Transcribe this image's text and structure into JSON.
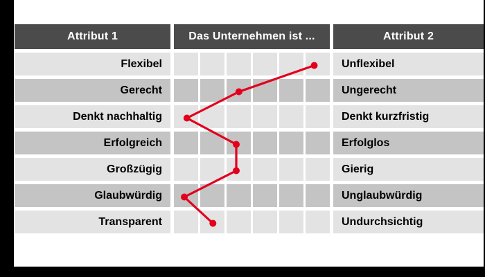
{
  "headers": {
    "left": "Attribut 1",
    "middle": "Das Unternehmen ist ...",
    "right": "Attribut 2"
  },
  "rows": [
    {
      "left": "Flexibel",
      "right": "Unflexibel",
      "value": 5.9
    },
    {
      "left": "Gerecht",
      "right": "Ungerecht",
      "value": 3.0
    },
    {
      "left": "Denkt nachhaltig",
      "right": "Denkt kurzfristig",
      "value": 1.0
    },
    {
      "left": "Erfolgreich",
      "right": "Erfolglos",
      "value": 2.9
    },
    {
      "left": "Großzügig",
      "right": "Gierig",
      "value": 2.9
    },
    {
      "left": "Glaubwürdig",
      "right": "Unglaubwürdig",
      "value": 0.9
    },
    {
      "left": "Transparent",
      "right": "Undurchsichtig",
      "value": 2.0
    }
  ],
  "colors": {
    "line": "#e2001d",
    "header_bg": "#4b4b4b",
    "row_light": "#e3e3e3",
    "row_medium": "#c4c4c4",
    "frame": "#000000",
    "header_text": "#ffffff",
    "row_text": "#000000"
  },
  "chart_data": {
    "type": "line",
    "title": "Das Unternehmen ist ...",
    "orientation": "vertical-profile",
    "scale": {
      "min": 1,
      "max": 6,
      "cells_per_row": 6
    },
    "categories_left": [
      "Flexibel",
      "Gerecht",
      "Denkt nachhaltig",
      "Erfolgreich",
      "Großzügig",
      "Glaubwürdig",
      "Transparent"
    ],
    "categories_right": [
      "Unflexibel",
      "Ungerecht",
      "Denkt kurzfristig",
      "Erfolglos",
      "Gierig",
      "Unglaubwürdig",
      "Undurchsichtig"
    ],
    "values": [
      5.9,
      3.0,
      1.0,
      2.9,
      2.9,
      0.9,
      2.0
    ],
    "series_color": "#e2001d",
    "grid": true,
    "legend": false
  }
}
